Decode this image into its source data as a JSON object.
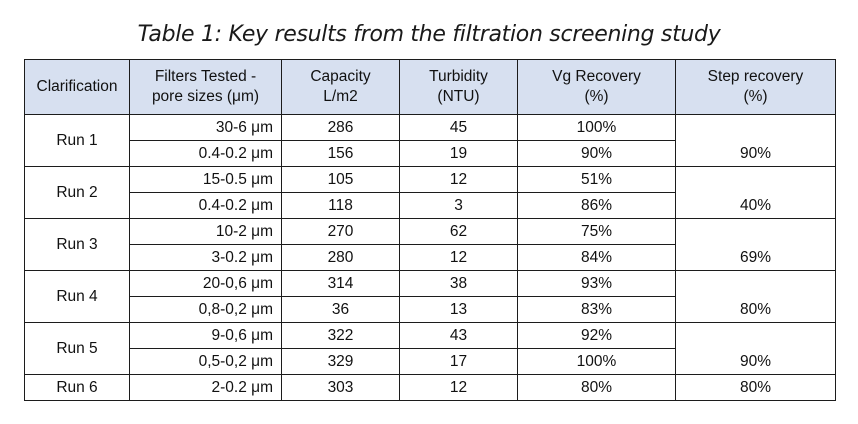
{
  "caption": "Table 1: Key results from the filtration screening study",
  "table": {
    "headers": [
      {
        "line1": "Clarification",
        "line2": ""
      },
      {
        "line1": "Filters Tested -",
        "line2": "pore sizes (μm)"
      },
      {
        "line1": "Capacity",
        "line2": "L/m2"
      },
      {
        "line1": "Turbidity",
        "line2": "(NTU)"
      },
      {
        "line1": "Vg Recovery",
        "line2": "(%)"
      },
      {
        "line1": "Step recovery",
        "line2": "(%)"
      }
    ],
    "runs": [
      {
        "name": "Run 1",
        "step_recovery": "90%",
        "rows": [
          {
            "filter": "30-6 μm",
            "capacity": "286",
            "turbidity": "45",
            "vg_recovery": "100%"
          },
          {
            "filter": "0.4-0.2 μm",
            "capacity": "156",
            "turbidity": "19",
            "vg_recovery": "90%"
          }
        ]
      },
      {
        "name": "Run 2",
        "step_recovery": "40%",
        "rows": [
          {
            "filter": "15-0.5 μm",
            "capacity": "105",
            "turbidity": "12",
            "vg_recovery": "51%"
          },
          {
            "filter": "0.4-0.2 μm",
            "capacity": "118",
            "turbidity": "3",
            "vg_recovery": "86%"
          }
        ]
      },
      {
        "name": "Run 3",
        "step_recovery": "69%",
        "rows": [
          {
            "filter": "10-2 μm",
            "capacity": "270",
            "turbidity": "62",
            "vg_recovery": "75%"
          },
          {
            "filter": "3-0.2 μm",
            "capacity": "280",
            "turbidity": "12",
            "vg_recovery": "84%"
          }
        ]
      },
      {
        "name": "Run 4",
        "step_recovery": "80%",
        "rows": [
          {
            "filter": "20-0,6 μm",
            "capacity": "314",
            "turbidity": "38",
            "vg_recovery": "93%"
          },
          {
            "filter": "0,8-0,2 μm",
            "capacity": "36",
            "turbidity": "13",
            "vg_recovery": "83%"
          }
        ]
      },
      {
        "name": "Run 5",
        "step_recovery": "90%",
        "rows": [
          {
            "filter": "9-0,6 μm",
            "capacity": "322",
            "turbidity": "43",
            "vg_recovery": "92%"
          },
          {
            "filter": "0,5-0,2 μm",
            "capacity": "329",
            "turbidity": "17",
            "vg_recovery": "100%"
          }
        ]
      },
      {
        "name": "Run 6",
        "step_recovery": "80%",
        "rows": [
          {
            "filter": "2-0.2 μm",
            "capacity": "303",
            "turbidity": "12",
            "vg_recovery": "80%"
          }
        ]
      }
    ]
  }
}
